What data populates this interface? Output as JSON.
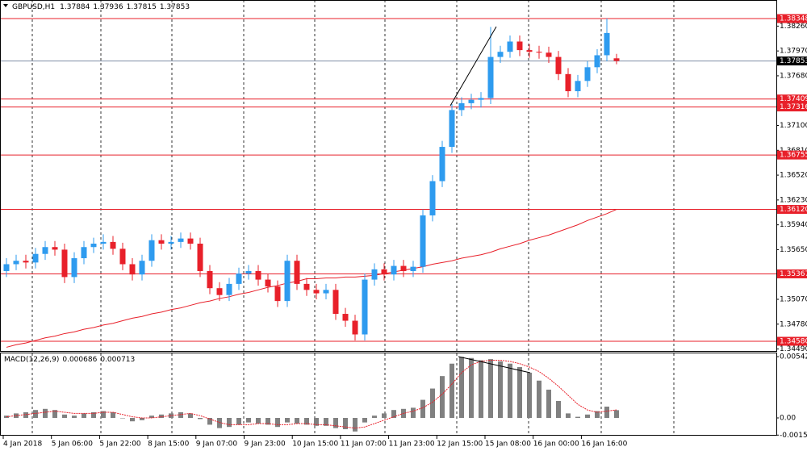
{
  "chart_data": [
    {
      "type": "candlestick",
      "title": "GBPUSD,H1",
      "bull_color": "#2e9bef",
      "bear_color": "#e8202a",
      "level_color": "#e8202a",
      "current_color": "#7f8fa6",
      "open": [
        1.354,
        1.3548,
        1.3552,
        1.355,
        1.356,
        1.3568,
        1.3565,
        1.3533,
        1.3555,
        1.3568,
        1.3572,
        1.3574,
        1.3566,
        1.3548,
        1.3536,
        1.3552,
        1.3576,
        1.3572,
        1.3574,
        1.3578,
        1.3572,
        1.354,
        1.352,
        1.3512,
        1.3525,
        1.3537,
        1.354,
        1.353,
        1.3522,
        1.3505,
        1.3552,
        1.3525,
        1.3518,
        1.3514,
        1.3518,
        1.349,
        1.3482,
        1.3466,
        1.353,
        1.3542,
        1.3536,
        1.3546,
        1.354,
        1.3545,
        1.3605,
        1.3645,
        1.3685,
        1.3728,
        1.3736,
        1.374,
        1.3742,
        1.379,
        1.3796,
        1.3808,
        1.3798,
        1.3796,
        1.3795,
        1.379,
        1.377,
        1.375,
        1.3762,
        1.3778,
        1.3792,
        1.37884
      ],
      "high": [
        1.3555,
        1.3559,
        1.3559,
        1.3567,
        1.3575,
        1.3575,
        1.3572,
        1.3562,
        1.3575,
        1.3579,
        1.3583,
        1.3581,
        1.3573,
        1.3555,
        1.3559,
        1.3583,
        1.3583,
        1.3581,
        1.3585,
        1.3585,
        1.3579,
        1.3547,
        1.3527,
        1.3532,
        1.3544,
        1.3547,
        1.3547,
        1.3537,
        1.3529,
        1.3559,
        1.3559,
        1.3532,
        1.3525,
        1.3525,
        1.3525,
        1.3497,
        1.3489,
        1.3537,
        1.3549,
        1.3549,
        1.3553,
        1.3553,
        1.3552,
        1.3612,
        1.3652,
        1.3692,
        1.3735,
        1.3743,
        1.3747,
        1.3749,
        1.3825,
        1.3803,
        1.3815,
        1.3815,
        1.3805,
        1.3803,
        1.3802,
        1.3797,
        1.3777,
        1.3769,
        1.3785,
        1.3799,
        1.3835,
        1.37936
      ],
      "low": [
        1.3533,
        1.3541,
        1.3543,
        1.3543,
        1.3553,
        1.3558,
        1.3526,
        1.3526,
        1.3548,
        1.3561,
        1.3565,
        1.3559,
        1.3541,
        1.3529,
        1.3529,
        1.3545,
        1.3565,
        1.3565,
        1.3567,
        1.3565,
        1.3533,
        1.3513,
        1.3505,
        1.3505,
        1.3518,
        1.353,
        1.3523,
        1.3515,
        1.3498,
        1.3498,
        1.3518,
        1.3511,
        1.3507,
        1.3507,
        1.3483,
        1.3475,
        1.3459,
        1.3459,
        1.3523,
        1.3529,
        1.3529,
        1.3533,
        1.3533,
        1.3538,
        1.3598,
        1.3638,
        1.3678,
        1.3721,
        1.3729,
        1.3731,
        1.3735,
        1.3783,
        1.3789,
        1.3791,
        1.3789,
        1.3788,
        1.3783,
        1.3763,
        1.3743,
        1.3743,
        1.3755,
        1.3771,
        1.3785,
        1.37815
      ],
      "close": [
        1.3548,
        1.3552,
        1.355,
        1.356,
        1.3568,
        1.3565,
        1.3533,
        1.3555,
        1.3568,
        1.3572,
        1.3574,
        1.3566,
        1.3548,
        1.3536,
        1.3552,
        1.3576,
        1.3572,
        1.3574,
        1.3578,
        1.3572,
        1.354,
        1.352,
        1.3512,
        1.3525,
        1.3537,
        1.354,
        1.353,
        1.3522,
        1.3505,
        1.3552,
        1.3525,
        1.3518,
        1.3514,
        1.3518,
        1.349,
        1.3482,
        1.3466,
        1.353,
        1.3542,
        1.3536,
        1.3546,
        1.354,
        1.3545,
        1.3605,
        1.3645,
        1.3685,
        1.3728,
        1.3736,
        1.374,
        1.3742,
        1.379,
        1.3796,
        1.3808,
        1.3798,
        1.3796,
        1.3795,
        1.379,
        1.377,
        1.375,
        1.3762,
        1.3778,
        1.3792,
        1.3818,
        1.37853
      ],
      "ma": {
        "color": "#e8202a",
        "values": [
          1.3451,
          1.3454,
          1.3456,
          1.3459,
          1.3462,
          1.3464,
          1.3467,
          1.3469,
          1.3472,
          1.3474,
          1.3477,
          1.3479,
          1.3482,
          1.3485,
          1.3487,
          1.349,
          1.3492,
          1.3495,
          1.3497,
          1.35,
          1.3503,
          1.3505,
          1.3508,
          1.351,
          1.3513,
          1.3515,
          1.3518,
          1.3521,
          1.3523,
          1.3526,
          1.3528,
          1.3531,
          1.3531,
          1.3532,
          1.3532,
          1.3533,
          1.3533,
          1.3534,
          1.3535,
          1.3537,
          1.3539,
          1.3541,
          1.3543,
          1.3545,
          1.3548,
          1.355,
          1.3552,
          1.3555,
          1.3557,
          1.3559,
          1.3562,
          1.3566,
          1.3569,
          1.3572,
          1.3576,
          1.3579,
          1.3582,
          1.3586,
          1.359,
          1.3594,
          1.3599,
          1.3603,
          1.3607,
          1.3612
        ]
      },
      "levels": [
        1.38348,
        1.37409,
        1.37316,
        1.36755,
        {
          "value": 1.3612,
          "label": "1.36120"
        },
        1.35367,
        {
          "value": 1.3458,
          "label": "1.34580"
        }
      ],
      "current": 1.37853,
      "ylim": [
        1.34467,
        1.38565
      ],
      "yticks": [
        {
          "value": 1.3826,
          "label": "1.38260"
        },
        {
          "value": 1.3797,
          "label": "1.37970"
        },
        {
          "value": 1.3768,
          "label": "1.37680"
        },
        {
          "value": 1.371,
          "label": "1.37100"
        },
        {
          "value": 1.3681,
          "label": "1.36810"
        },
        {
          "value": 1.3652,
          "label": "1.36520"
        },
        {
          "value": 1.3623,
          "label": "1.36230"
        },
        {
          "value": 1.3594,
          "label": "1.35940"
        },
        {
          "value": 1.3565,
          "label": "1.35650"
        },
        {
          "value": 1.3507,
          "label": "1.35070"
        },
        {
          "value": 1.3478,
          "label": "1.34780"
        },
        {
          "value": 1.3449,
          "label": "1.34490"
        }
      ]
    },
    {
      "type": "bar",
      "title": "MACD(12,26,9)",
      "color": "#808080",
      "signal_color": "#e8202a",
      "values": [
        0.0002,
        0.0004,
        0.0005,
        0.0007,
        0.0008,
        0.0007,
        0.0003,
        0.0002,
        0.0004,
        0.0005,
        0.0006,
        0.0005,
        0,
        -0.0003,
        -0.0002,
        0.0002,
        0.0003,
        0.0004,
        0.0005,
        0.0004,
        -0.0001,
        -0.0006,
        -0.0009,
        -0.0008,
        -0.0006,
        -0.0004,
        -0.0005,
        -0.0006,
        -0.0008,
        -0.0004,
        -0.0005,
        -0.0006,
        -0.0007,
        -0.0007,
        -0.0009,
        -0.001,
        -0.0012,
        -0.0004,
        0.0002,
        0.0004,
        0.0007,
        0.0008,
        0.0009,
        0.0016,
        0.0026,
        0.0037,
        0.0048,
        0.0054,
        0.0053,
        0.0051,
        0.0052,
        0.005,
        0.0048,
        0.0045,
        0.004,
        0.0033,
        0.0025,
        0.0015,
        0.0004,
        0.0001,
        0.0003,
        0.0006,
        0.001,
        0.000686
      ],
      "signal": [
        0.0001,
        0.0002,
        0.0003,
        0.0004,
        0.0005,
        0.0006,
        0.0005,
        0.0004,
        0.0004,
        0.0004,
        0.0005,
        0.0005,
        0.0003,
        0.0001,
        0,
        0,
        0.0001,
        0.0002,
        0.0003,
        0.0004,
        0.0002,
        -0.0001,
        -0.0004,
        -0.0006,
        -0.0006,
        -0.0006,
        -0.0005,
        -0.0005,
        -0.0006,
        -0.0006,
        -0.0005,
        -0.0005,
        -0.0006,
        -0.0006,
        -0.0007,
        -0.0008,
        -0.0009,
        -0.0008,
        -0.0005,
        -0.0002,
        0.0001,
        0.0004,
        0.0006,
        0.0009,
        0.0014,
        0.0021,
        0.003,
        0.004,
        0.0047,
        0.005,
        0.0051,
        0.0051,
        0.005,
        0.0048,
        0.0045,
        0.0041,
        0.0035,
        0.0028,
        0.002,
        0.0012,
        0.0007,
        0.0005,
        0.0006,
        0.000713
      ],
      "ylim": [
        -0.00157,
        0.00578
      ],
      "yticks": [
        0.00542,
        {
          "value": 0,
          "label": "0.00"
        },
        -0.00152
      ],
      "x_labels": [
        "4 Jan 2018",
        "5 Jan 06:00",
        "5 Jan 22:00",
        "8 Jan 15:00",
        "9 Jan 07:00",
        "9 Jan 23:00",
        "10 Jan 15:00",
        "11 Jan 07:00",
        "11 Jan 23:00",
        "12 Jan 15:00",
        "15 Jan 08:00",
        "16 Jan 00:00",
        "16 Jan 16:00"
      ]
    }
  ]
}
